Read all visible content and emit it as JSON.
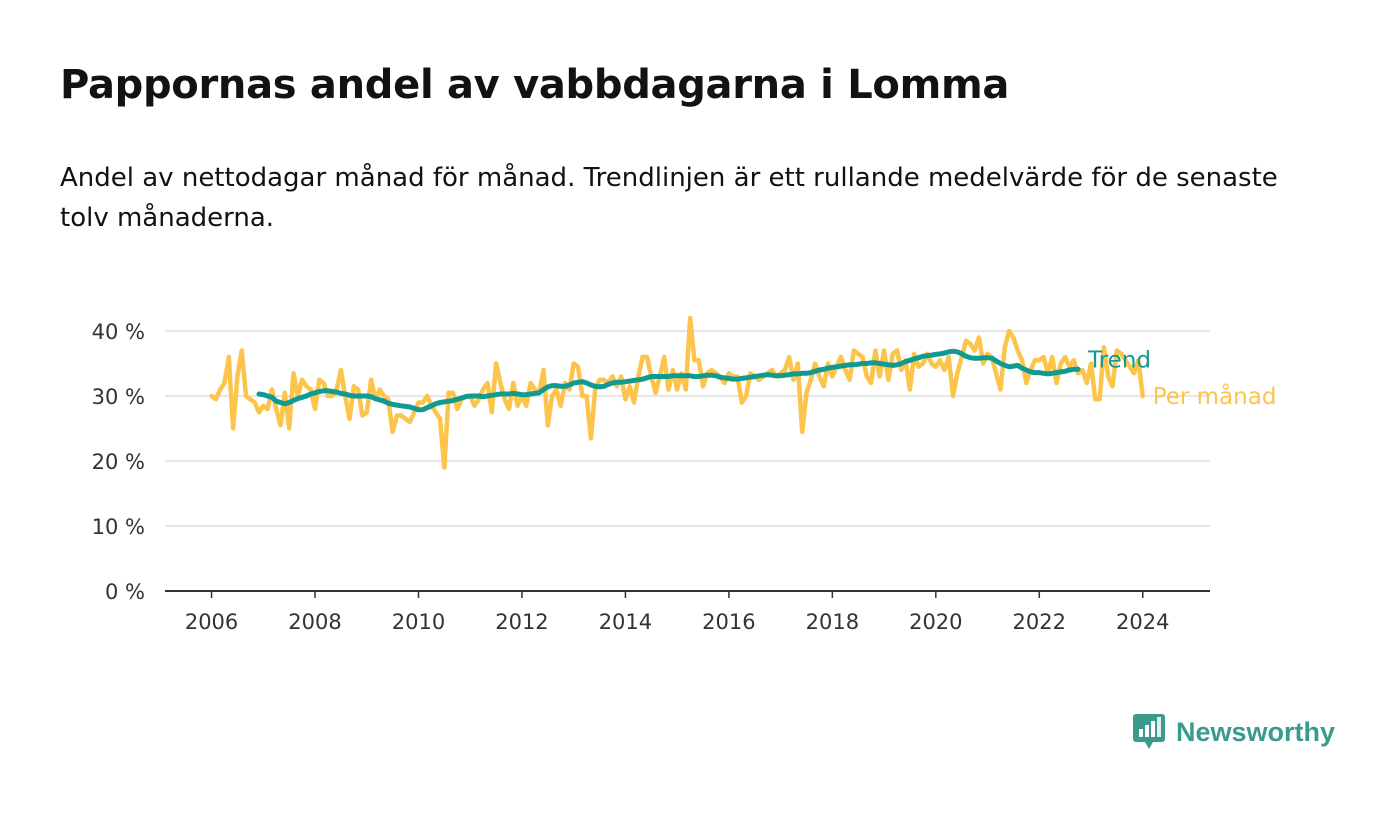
{
  "title": "Pappornas andel av vabbdagarna i Lomma",
  "subtitle": "Andel av nettodagar månad för månad. Trendlinjen är ett rullande medelvärde för de senaste tolv månaderna.",
  "brand": {
    "name": "Newsworthy",
    "color": "#3a9a8c"
  },
  "chart_data": {
    "type": "line",
    "title": "Pappornas andel av vabbdagarna i Lomma",
    "ylim": [
      0,
      40
    ],
    "y_ticks": [
      0,
      10,
      20,
      30,
      40
    ],
    "y_tick_labels": [
      "0 %",
      "10 %",
      "20 %",
      "30 %",
      "40 %"
    ],
    "x_ticks": [
      2006,
      2008,
      2010,
      2012,
      2014,
      2016,
      2018,
      2020,
      2022,
      2024
    ],
    "xlim": [
      2005.1,
      2025.3
    ],
    "grid": "horizontal",
    "legend": "line-end labels at right",
    "series": [
      {
        "name": "Per månad",
        "color": "#fcc44a",
        "start": 2006.0,
        "step": 0.08333,
        "values": [
          30.0,
          29.5,
          31.0,
          32.0,
          36.0,
          25.0,
          33.0,
          37.0,
          30.0,
          29.5,
          29.0,
          27.5,
          28.5,
          28.0,
          31.0,
          28.0,
          25.5,
          30.5,
          25.0,
          33.5,
          30.0,
          32.5,
          31.5,
          31.0,
          28.0,
          32.5,
          32.0,
          30.0,
          30.0,
          31.0,
          34.0,
          30.0,
          26.5,
          31.5,
          31.0,
          27.0,
          27.5,
          32.5,
          29.5,
          31.0,
          30.0,
          29.5,
          24.5,
          27.0,
          27.0,
          26.5,
          26.0,
          27.5,
          29.0,
          29.0,
          30.0,
          28.5,
          27.5,
          26.5,
          19.0,
          30.5,
          30.5,
          28.0,
          29.5,
          30.0,
          30.0,
          28.5,
          29.5,
          31.0,
          32.0,
          27.5,
          35.0,
          32.0,
          29.5,
          28.0,
          32.0,
          28.5,
          30.0,
          28.5,
          32.0,
          31.0,
          30.5,
          34.0,
          25.5,
          30.0,
          31.0,
          28.5,
          32.0,
          31.0,
          35.0,
          34.5,
          30.0,
          30.0,
          23.5,
          31.0,
          32.5,
          32.5,
          32.0,
          33.0,
          31.5,
          33.0,
          29.5,
          31.5,
          29.0,
          33.0,
          36.0,
          36.0,
          33.0,
          30.5,
          33.0,
          36.0,
          31.0,
          34.0,
          31.0,
          33.5,
          31.0,
          42.0,
          35.5,
          35.5,
          31.5,
          33.5,
          34.0,
          33.5,
          33.0,
          32.0,
          33.5,
          33.0,
          33.0,
          29.0,
          30.0,
          33.5,
          33.0,
          32.5,
          33.0,
          33.5,
          34.0,
          33.0,
          33.5,
          34.0,
          36.0,
          32.5,
          35.0,
          24.5,
          30.5,
          32.5,
          35.0,
          33.0,
          31.5,
          35.0,
          33.0,
          34.5,
          36.0,
          34.0,
          32.5,
          37.0,
          36.5,
          36.0,
          33.0,
          32.0,
          37.0,
          33.0,
          37.0,
          32.5,
          36.5,
          37.0,
          34.0,
          35.5,
          31.0,
          36.5,
          34.5,
          35.0,
          36.5,
          35.0,
          34.5,
          35.5,
          34.0,
          36.0,
          30.0,
          33.5,
          36.0,
          38.5,
          38.0,
          37.0,
          39.0,
          35.0,
          36.5,
          36.0,
          33.5,
          31.0,
          37.5,
          40.0,
          39.0,
          37.0,
          35.5,
          32.0,
          34.0,
          35.5,
          35.5,
          36.0,
          33.5,
          36.0,
          32.0,
          35.0,
          36.0,
          34.5,
          35.5,
          33.5,
          34.0,
          32.0,
          35.0,
          29.5,
          29.5,
          37.5,
          33.0,
          31.5,
          37.0,
          36.5,
          35.5,
          34.5,
          33.5,
          35.5,
          30.0
        ]
      },
      {
        "name": "Trend",
        "color": "#119a8f",
        "start": 2006.9167,
        "step": 0.08333,
        "values": [
          30.3,
          30.2,
          30.0,
          29.8,
          29.2,
          29.0,
          28.8,
          29.0,
          29.3,
          29.6,
          29.8,
          30.0,
          30.3,
          30.5,
          30.7,
          30.8,
          30.8,
          30.7,
          30.6,
          30.4,
          30.3,
          30.1,
          30.0,
          30.0,
          30.0,
          30.0,
          29.9,
          29.6,
          29.4,
          29.2,
          28.9,
          28.7,
          28.6,
          28.5,
          28.4,
          28.3,
          28.1,
          27.9,
          27.9,
          28.2,
          28.5,
          28.8,
          29.0,
          29.1,
          29.2,
          29.3,
          29.5,
          29.7,
          29.9,
          30.0,
          30.0,
          30.0,
          29.9,
          30.0,
          30.1,
          30.2,
          30.3,
          30.3,
          30.3,
          30.4,
          30.3,
          30.2,
          30.2,
          30.3,
          30.4,
          30.5,
          31.0,
          31.4,
          31.6,
          31.6,
          31.5,
          31.5,
          31.7,
          32.0,
          32.1,
          32.2,
          32.0,
          31.7,
          31.5,
          31.4,
          31.5,
          31.8,
          32.0,
          32.1,
          32.1,
          32.2,
          32.3,
          32.4,
          32.5,
          32.6,
          32.8,
          33.0,
          33.0,
          33.0,
          33.0,
          33.0,
          33.1,
          33.1,
          33.1,
          33.1,
          33.1,
          33.0,
          33.0,
          33.1,
          33.2,
          33.2,
          33.1,
          32.9,
          32.8,
          32.7,
          32.6,
          32.6,
          32.7,
          32.8,
          32.9,
          33.0,
          33.1,
          33.2,
          33.3,
          33.2,
          33.1,
          33.1,
          33.2,
          33.3,
          33.4,
          33.4,
          33.5,
          33.5,
          33.6,
          33.8,
          34.0,
          34.1,
          34.3,
          34.4,
          34.5,
          34.6,
          34.7,
          34.8,
          34.8,
          34.9,
          35.0,
          35.0,
          35.1,
          35.1,
          35.0,
          34.9,
          34.8,
          34.7,
          34.8,
          35.0,
          35.3,
          35.5,
          35.7,
          35.9,
          36.1,
          36.2,
          36.3,
          36.4,
          36.5,
          36.6,
          36.8,
          36.9,
          36.8,
          36.5,
          36.1,
          35.9,
          35.8,
          35.8,
          35.9,
          35.9,
          35.8,
          35.4,
          35.0,
          34.7,
          34.5,
          34.6,
          34.7,
          34.3,
          34.0,
          33.7,
          33.6,
          33.6,
          33.5,
          33.4,
          33.5,
          33.6,
          33.7,
          33.8,
          34.0,
          34.1,
          34.1
        ]
      }
    ]
  }
}
